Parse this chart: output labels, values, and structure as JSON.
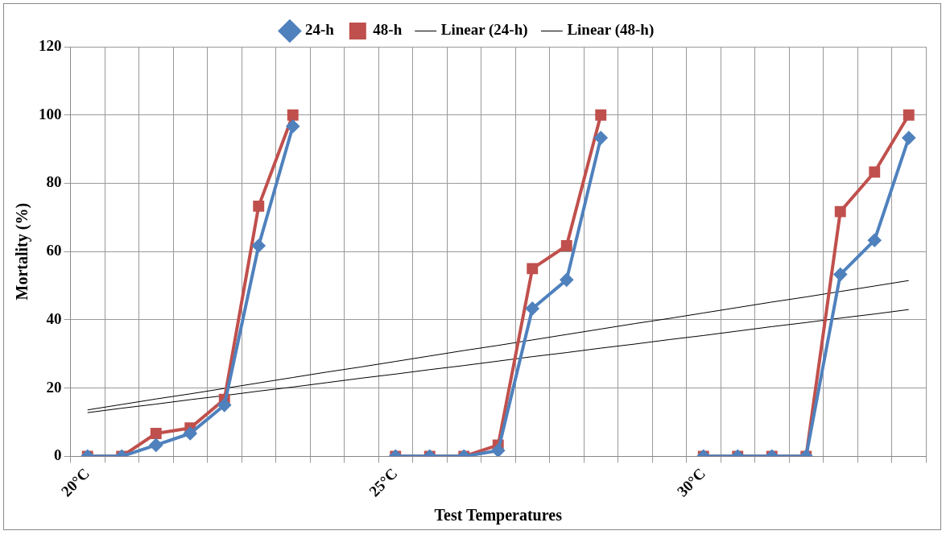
{
  "chart_data": {
    "type": "line",
    "xlabel": "Test Temperatures",
    "ylabel": "Mortality (%)",
    "categories": [
      "20°C",
      null,
      null,
      null,
      null,
      null,
      null,
      null,
      null,
      "25°C",
      null,
      null,
      null,
      null,
      null,
      null,
      null,
      null,
      "30°C",
      null,
      null,
      null,
      null,
      null,
      null
    ],
    "series": [
      {
        "name": "24-h",
        "color": "#4f81bd",
        "marker": "diamond",
        "values": [
          0,
          0,
          3.3,
          6.7,
          15,
          61.7,
          96.7,
          null,
          null,
          0,
          0,
          0,
          1.7,
          43.3,
          51.7,
          93.3,
          null,
          null,
          0,
          0,
          0,
          0,
          53.3,
          63.3,
          93.3
        ]
      },
      {
        "name": "48-h",
        "color": "#c0504d",
        "marker": "square",
        "values": [
          0,
          0,
          6.7,
          8.3,
          16.7,
          73.3,
          100,
          null,
          null,
          0,
          0,
          0,
          3.3,
          55,
          61.7,
          100,
          null,
          null,
          0,
          0,
          0,
          0,
          71.7,
          83.3,
          100
        ]
      },
      {
        "name": "Linear (24-h)",
        "color": "#000000",
        "marker": "none",
        "values": [
          12.8,
          14.1,
          15.3,
          16.6,
          17.8,
          19.1,
          20.3,
          21.6,
          22.9,
          24.1,
          25.4,
          26.6,
          27.9,
          29.2,
          30.4,
          31.7,
          32.9,
          34.2,
          35.4,
          36.7,
          38,
          39.2,
          40.5,
          41.7,
          43
        ]
      },
      {
        "name": "Linear (48-h)",
        "color": "#000000",
        "marker": "none",
        "values": [
          13.6,
          15.2,
          16.8,
          18.3,
          19.9,
          21.5,
          23.1,
          24.7,
          26.2,
          27.8,
          29.4,
          31,
          32.5,
          34.1,
          35.7,
          37.3,
          38.9,
          40.4,
          42,
          43.6,
          45.2,
          46.7,
          48.3,
          49.9,
          51.5
        ]
      }
    ],
    "ylim": [
      0,
      120
    ],
    "yticks": [
      0,
      20,
      40,
      60,
      80,
      100,
      120
    ],
    "grid": true,
    "legend": "top"
  }
}
